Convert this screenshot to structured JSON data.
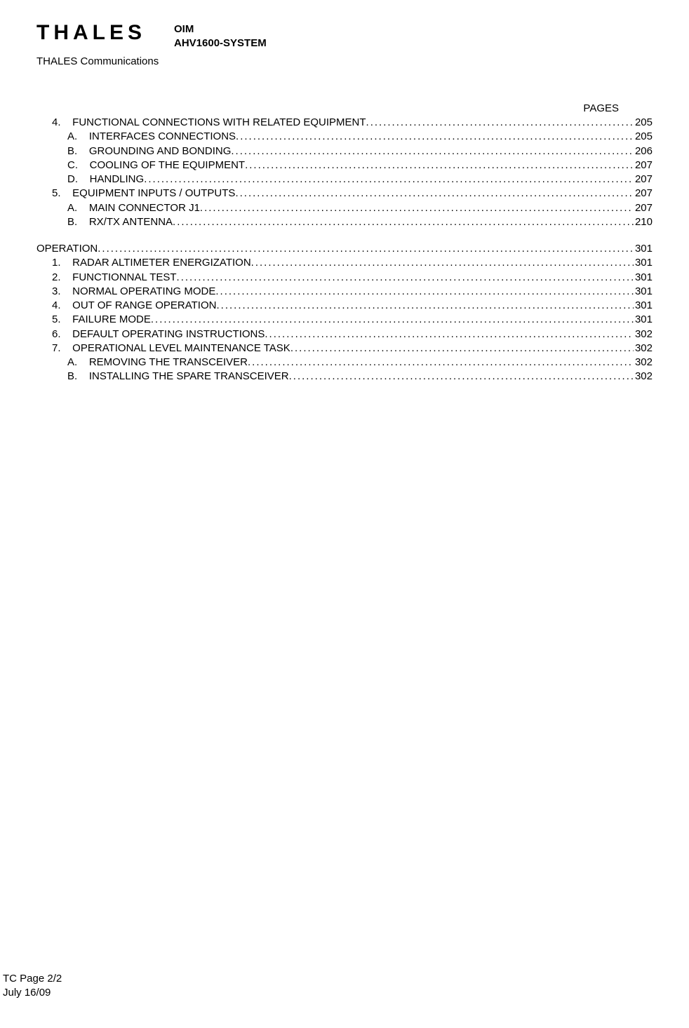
{
  "header": {
    "logo_text": "THALES",
    "doc_line1": "OIM",
    "doc_line2": "AHV1600-SYSTEM",
    "subhead": "THALES Communications"
  },
  "pages_label": "PAGES",
  "toc": [
    {
      "indent": 1,
      "prefix": "4.",
      "title": "FUNCTIONAL CONNECTIONS WITH RELATED EQUIPMENT",
      "page": "205"
    },
    {
      "indent": 2,
      "prefix": "A.",
      "title": "INTERFACES CONNECTIONS",
      "page": "205"
    },
    {
      "indent": 2,
      "prefix": "B.",
      "title": "GROUNDING AND BONDING",
      "page": "206"
    },
    {
      "indent": 2,
      "prefix": "C.",
      "title": "COOLING OF THE EQUIPMENT",
      "page": "207"
    },
    {
      "indent": 2,
      "prefix": "D.",
      "title": "HANDLING",
      "page": "207"
    },
    {
      "indent": 1,
      "prefix": "5.",
      "title": "EQUIPMENT INPUTS / OUTPUTS",
      "page": "207"
    },
    {
      "indent": 2,
      "prefix": "A.",
      "title": "MAIN CONNECTOR J1",
      "page": "207"
    },
    {
      "indent": 2,
      "prefix": "B.",
      "title": "RX/TX ANTENNA",
      "page": "210"
    },
    {
      "gap": true
    },
    {
      "indent": 0,
      "prefix": "",
      "title": "OPERATION",
      "page": "301"
    },
    {
      "indent": 1,
      "prefix": "1.",
      "title": "RADAR ALTIMETER ENERGIZATION",
      "page": "301"
    },
    {
      "indent": 1,
      "prefix": "2.",
      "title": "FUNCTIONNAL TEST",
      "page": "301"
    },
    {
      "indent": 1,
      "prefix": "3.",
      "title": "NORMAL OPERATING MODE",
      "page": "301"
    },
    {
      "indent": 1,
      "prefix": "4.",
      "title": "OUT OF RANGE OPERATION",
      "page": "301"
    },
    {
      "indent": 1,
      "prefix": "5.",
      "title": "FAILURE MODE",
      "page": "301"
    },
    {
      "indent": 1,
      "prefix": "6.",
      "title": "DEFAULT OPERATING INSTRUCTIONS",
      "page": "302"
    },
    {
      "indent": 1,
      "prefix": "7.",
      "title": "OPERATIONAL LEVEL MAINTENANCE TASK",
      "page": "302"
    },
    {
      "indent": 2,
      "prefix": "A.",
      "title": "REMOVING THE TRANSCEIVER",
      "page": "302"
    },
    {
      "indent": 2,
      "prefix": "B.",
      "title": "INSTALLING THE SPARE TRANSCEIVER",
      "page": "302"
    }
  ],
  "footer": {
    "page": "TC Page 2/2",
    "date": "July 16/09"
  }
}
